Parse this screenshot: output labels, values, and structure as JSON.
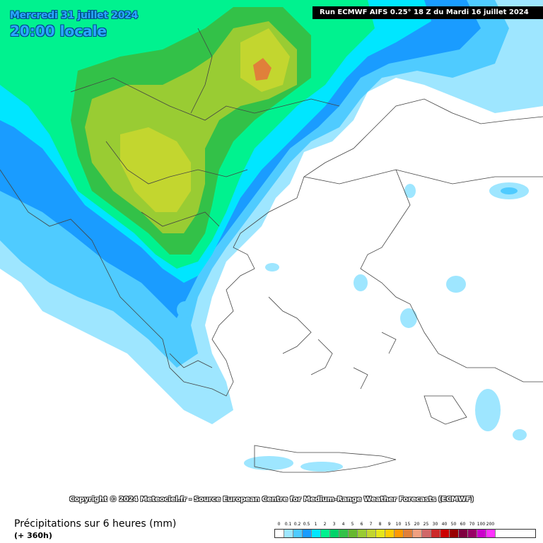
{
  "header": {
    "date": "Mercredi 31 juillet 2024",
    "local_time": "20:00 locale",
    "run_info": "Run ECMWF AIFS 0.25° 18 Z du Mardi 16 juillet 2024"
  },
  "footer": {
    "copyright": "Copyright © 2024 Meteociel.fr - Source European Centre for Medium-Range Weather Forecasts (ECMWF)",
    "variable": "Précipitations sur 6 heures (mm)",
    "lead_time": "(+ 360h)"
  },
  "legend": {
    "labels": [
      "0",
      "0.1",
      "0.2",
      "0.5",
      "1",
      "2",
      "3",
      "4",
      "5",
      "6",
      "7",
      "8",
      "9",
      "10",
      "15",
      "20",
      "25",
      "30",
      "40",
      "50",
      "60",
      "70",
      "100",
      "200"
    ],
    "colors": [
      "#ffffff",
      "#9ee6ff",
      "#4fcbff",
      "#1a9cff",
      "#00e6ff",
      "#00f28f",
      "#00d36a",
      "#33c148",
      "#66b82f",
      "#99cc33",
      "#c3d62f",
      "#e6e61a",
      "#ffcc00",
      "#ff9900",
      "#e0803a",
      "#f0a080",
      "#d06868",
      "#cc2a2a",
      "#cc0000",
      "#990000",
      "#800040",
      "#990066",
      "#cc00cc",
      "#ff33ff"
    ]
  },
  "map_colors": {
    "land": "#ffffff",
    "light_blue": "#9ee6ff",
    "blue": "#4fcbff",
    "deep_blue": "#1a9cff",
    "cyan": "#00e6ff",
    "green_light": "#00f28f",
    "green": "#33c148",
    "yellow_green": "#99cc33",
    "yellow": "#c3d62f",
    "orange": "#e0803a"
  }
}
